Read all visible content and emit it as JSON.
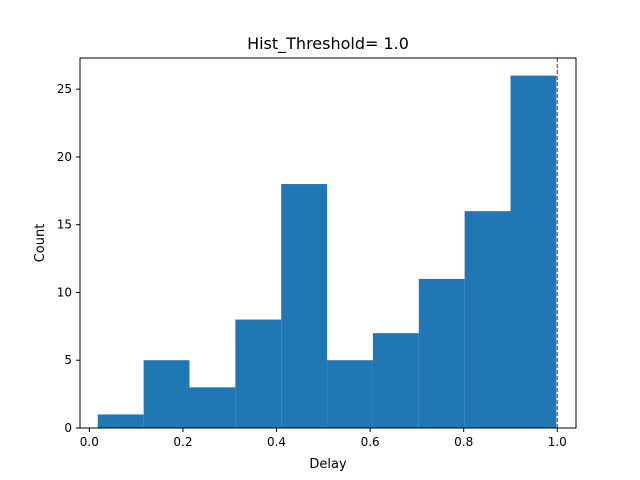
{
  "chart_data": {
    "type": "bar",
    "title": "Hist_Threshold= 1.0",
    "xlabel": "Delay",
    "ylabel": "Count",
    "xlim": [
      -0.02,
      1.04
    ],
    "ylim": [
      0,
      27.3
    ],
    "bins": [
      {
        "x0": 0.018,
        "x1": 0.116,
        "count": 1
      },
      {
        "x0": 0.116,
        "x1": 0.214,
        "count": 5
      },
      {
        "x0": 0.214,
        "x1": 0.312,
        "count": 3
      },
      {
        "x0": 0.312,
        "x1": 0.41,
        "count": 8
      },
      {
        "x0": 0.41,
        "x1": 0.508,
        "count": 18
      },
      {
        "x0": 0.508,
        "x1": 0.606,
        "count": 5
      },
      {
        "x0": 0.606,
        "x1": 0.704,
        "count": 7
      },
      {
        "x0": 0.704,
        "x1": 0.802,
        "count": 11
      },
      {
        "x0": 0.802,
        "x1": 0.9,
        "count": 16
      },
      {
        "x0": 0.9,
        "x1": 0.998,
        "count": 26
      }
    ],
    "xticks": [
      0.0,
      0.2,
      0.4,
      0.6,
      0.8,
      1.0
    ],
    "xtick_labels": [
      "0.0",
      "0.2",
      "0.4",
      "0.6",
      "0.8",
      "1.0"
    ],
    "yticks": [
      0,
      5,
      10,
      15,
      20,
      25
    ],
    "ytick_labels": [
      "0",
      "5",
      "10",
      "15",
      "20",
      "25"
    ],
    "threshold": 1.0,
    "bar_color": "#1f77b4",
    "threshold_color": "#d62728",
    "grid": false,
    "legend": "none"
  }
}
